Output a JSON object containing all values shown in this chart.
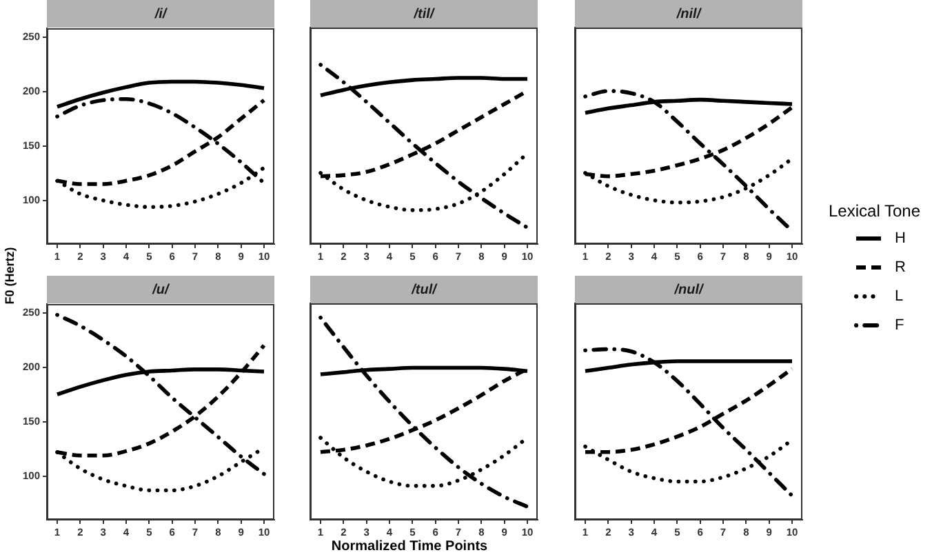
{
  "chart_data": [
    {
      "type": "line",
      "title": "/i/",
      "x": [
        1,
        2,
        3,
        4,
        5,
        6,
        7,
        8,
        9,
        10
      ],
      "xlim": [
        0.55,
        10.45
      ],
      "xticks": [
        1,
        2,
        3,
        4,
        5,
        6,
        7,
        8,
        9,
        10
      ],
      "ylim": [
        60,
        258
      ],
      "yticks": [
        100,
        150,
        200,
        250
      ],
      "legend": "right",
      "legend_title": "Lexical Tone",
      "series": [
        {
          "name": "H",
          "color": "#000000",
          "line_style": "solid",
          "values": [
            186,
            193,
            199,
            204,
            208,
            209,
            209,
            208,
            206,
            203
          ]
        },
        {
          "name": "R",
          "color": "#000000",
          "line_style": "dashed",
          "values": [
            118,
            115,
            115,
            118,
            123,
            132,
            145,
            158,
            175,
            192
          ]
        },
        {
          "name": "L",
          "color": "#000000",
          "line_style": "dotted",
          "values": [
            118,
            106,
            100,
            96,
            94,
            95,
            99,
            106,
            116,
            130
          ]
        },
        {
          "name": "F",
          "color": "#000000",
          "line_style": "dashdot",
          "values": [
            177,
            187,
            192,
            193,
            189,
            180,
            167,
            152,
            135,
            116
          ]
        }
      ]
    },
    {
      "type": "line",
      "title": "/til/",
      "x": [
        1,
        2,
        3,
        4,
        5,
        6,
        7,
        8,
        9,
        10
      ],
      "xlim": [
        0.55,
        10.45
      ],
      "xticks": [
        1,
        2,
        3,
        4,
        5,
        6,
        7,
        8,
        9,
        10
      ],
      "ylim": [
        60,
        258
      ],
      "yticks": [
        100,
        150,
        200,
        250
      ],
      "tick_labels": "x",
      "series": [
        {
          "color": "#000000",
          "line_style": "solid",
          "values": [
            196,
            201,
            205,
            208,
            210,
            211,
            212,
            212,
            211,
            211
          ]
        },
        {
          "color": "#000000",
          "line_style": "dashed",
          "values": [
            122,
            123,
            126,
            133,
            142,
            152,
            164,
            176,
            188,
            200
          ]
        },
        {
          "color": "#000000",
          "line_style": "dotted",
          "values": [
            125,
            110,
            100,
            94,
            91,
            92,
            97,
            108,
            124,
            143
          ]
        },
        {
          "color": "#000000",
          "line_style": "dashdot",
          "values": [
            224,
            208,
            190,
            171,
            152,
            134,
            117,
            102,
            88,
            75
          ]
        }
      ]
    },
    {
      "type": "line",
      "title": "/nil/",
      "x": [
        1,
        2,
        3,
        4,
        5,
        6,
        7,
        8,
        9,
        10
      ],
      "xlim": [
        0.55,
        10.45
      ],
      "xticks": [
        1,
        2,
        3,
        4,
        5,
        6,
        7,
        8,
        9,
        10
      ],
      "ylim": [
        60,
        258
      ],
      "yticks": [
        100,
        150,
        200,
        250
      ],
      "tick_labels": "x",
      "series": [
        {
          "color": "#000000",
          "line_style": "solid",
          "values": [
            180,
            184,
            187,
            190,
            191,
            192,
            191,
            190,
            189,
            188
          ]
        },
        {
          "color": "#000000",
          "line_style": "dashed",
          "values": [
            124,
            122,
            124,
            127,
            132,
            138,
            146,
            157,
            170,
            185
          ]
        },
        {
          "color": "#000000",
          "line_style": "dotted",
          "values": [
            125,
            113,
            105,
            100,
            98,
            99,
            103,
            111,
            123,
            138
          ]
        },
        {
          "color": "#000000",
          "line_style": "dashdot",
          "values": [
            195,
            200,
            198,
            190,
            172,
            152,
            133,
            113,
            92,
            72
          ]
        }
      ]
    },
    {
      "type": "line",
      "title": "/u/",
      "ylabel": "F0 (Hertz)",
      "x": [
        1,
        2,
        3,
        4,
        5,
        6,
        7,
        8,
        9,
        10
      ],
      "xlim": [
        0.55,
        10.45
      ],
      "xticks": [
        1,
        2,
        3,
        4,
        5,
        6,
        7,
        8,
        9,
        10
      ],
      "ylim": [
        60,
        258
      ],
      "yticks": [
        100,
        150,
        200,
        250
      ],
      "series": [
        {
          "color": "#000000",
          "line_style": "solid",
          "values": [
            175,
            182,
            188,
            193,
            196,
            197,
            198,
            198,
            197,
            196
          ]
        },
        {
          "color": "#000000",
          "line_style": "dashed",
          "values": [
            122,
            119,
            119,
            123,
            130,
            141,
            155,
            173,
            195,
            220
          ]
        },
        {
          "color": "#000000",
          "line_style": "dotted",
          "values": [
            122,
            107,
            97,
            91,
            87,
            87,
            91,
            100,
            113,
            126
          ]
        },
        {
          "color": "#000000",
          "line_style": "dashdot",
          "values": [
            248,
            238,
            225,
            210,
            192,
            172,
            154,
            136,
            118,
            102
          ]
        }
      ]
    },
    {
      "type": "line",
      "title": "/tul/",
      "xlabel": "Normalized Time Points",
      "x": [
        1,
        2,
        3,
        4,
        5,
        6,
        7,
        8,
        9,
        10
      ],
      "xlim": [
        0.55,
        10.45
      ],
      "xticks": [
        1,
        2,
        3,
        4,
        5,
        6,
        7,
        8,
        9,
        10
      ],
      "ylim": [
        60,
        258
      ],
      "yticks": [
        100,
        150,
        200,
        250
      ],
      "tick_labels": "x",
      "series": [
        {
          "color": "#000000",
          "line_style": "solid",
          "values": [
            193,
            195,
            197,
            198,
            199,
            199,
            199,
            199,
            198,
            196
          ]
        },
        {
          "color": "#000000",
          "line_style": "dashed",
          "values": [
            122,
            124,
            128,
            134,
            142,
            151,
            162,
            174,
            187,
            198
          ]
        },
        {
          "color": "#000000",
          "line_style": "dotted",
          "values": [
            135,
            117,
            104,
            95,
            91,
            91,
            96,
            106,
            119,
            135
          ]
        },
        {
          "color": "#000000",
          "line_style": "dashdot",
          "values": [
            245,
            218,
            192,
            168,
            146,
            126,
            108,
            93,
            81,
            72
          ]
        }
      ]
    },
    {
      "type": "line",
      "title": "/nul/",
      "x": [
        1,
        2,
        3,
        4,
        5,
        6,
        7,
        8,
        9,
        10
      ],
      "xlim": [
        0.55,
        10.45
      ],
      "xticks": [
        1,
        2,
        3,
        4,
        5,
        6,
        7,
        8,
        9,
        10
      ],
      "ylim": [
        60,
        258
      ],
      "yticks": [
        100,
        150,
        200,
        250
      ],
      "tick_labels": "x",
      "series": [
        {
          "color": "#000000",
          "line_style": "solid",
          "values": [
            196,
            199,
            202,
            204,
            205,
            205,
            205,
            205,
            205,
            205
          ]
        },
        {
          "color": "#000000",
          "line_style": "dashed",
          "values": [
            122,
            122,
            124,
            129,
            136,
            145,
            157,
            169,
            183,
            198
          ]
        },
        {
          "color": "#000000",
          "line_style": "dotted",
          "values": [
            127,
            115,
            104,
            98,
            95,
            95,
            99,
            107,
            118,
            133
          ]
        },
        {
          "color": "#000000",
          "line_style": "dashdot",
          "values": [
            215,
            216,
            214,
            204,
            187,
            166,
            144,
            124,
            103,
            82
          ]
        }
      ]
    }
  ]
}
